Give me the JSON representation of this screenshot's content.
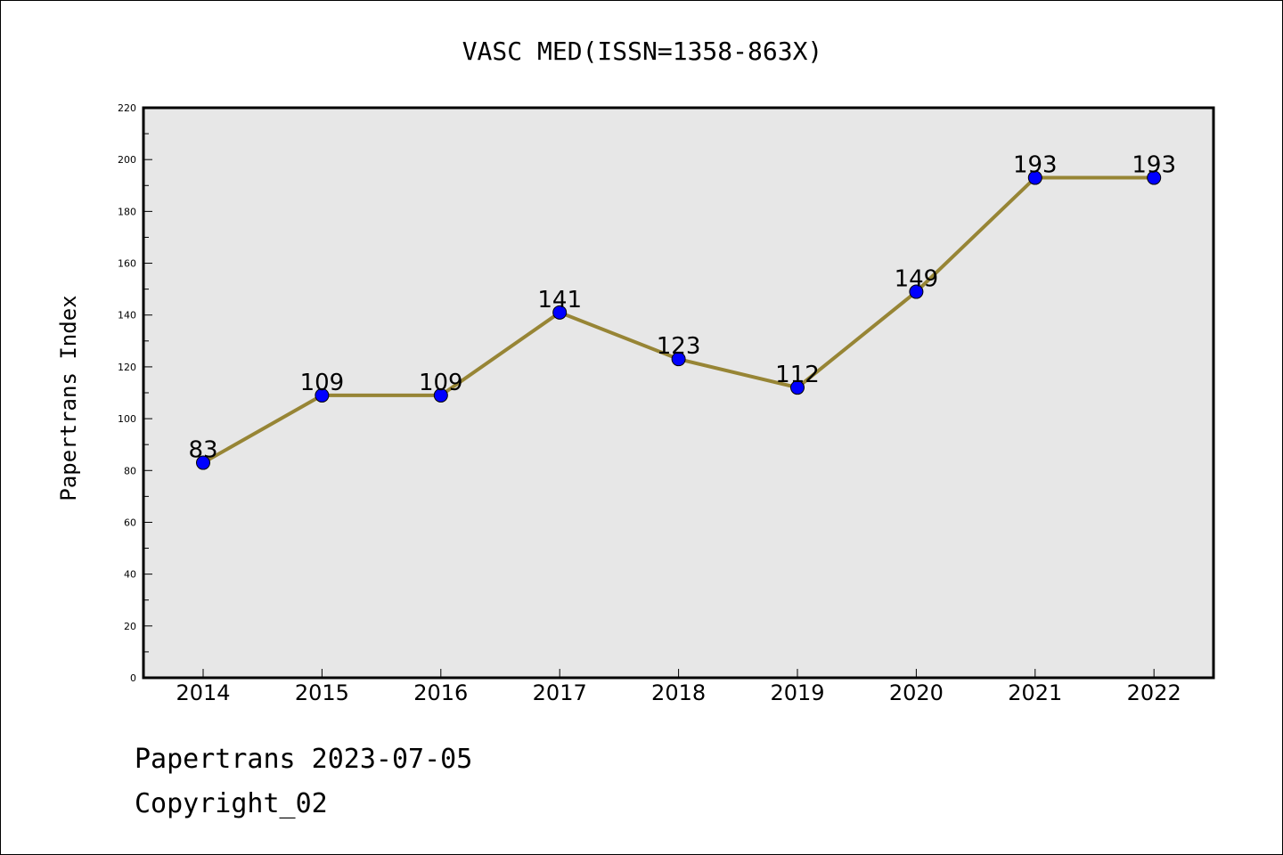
{
  "chart_data": {
    "type": "line",
    "title": "VASC MED(ISSN=1358-863X)",
    "xlabel": "",
    "ylabel": "Papertrans Index",
    "categories": [
      "2014",
      "2015",
      "2016",
      "2017",
      "2018",
      "2019",
      "2020",
      "2021",
      "2022"
    ],
    "series": [
      {
        "values": [
          83,
          109,
          109,
          141,
          123,
          112,
          149,
          193,
          193
        ]
      }
    ],
    "ylim": [
      0,
      220
    ],
    "yticks": [
      0,
      20,
      40,
      60,
      80,
      100,
      120,
      140,
      160,
      180,
      200,
      220
    ],
    "grid": false,
    "data_labels": true,
    "colors": {
      "line": "#978535",
      "marker": "#0000ff",
      "plot_background": "#e7e7e7"
    }
  },
  "footer": {
    "line1": "Papertrans 2023-07-05",
    "line2": "Copyright_02"
  }
}
